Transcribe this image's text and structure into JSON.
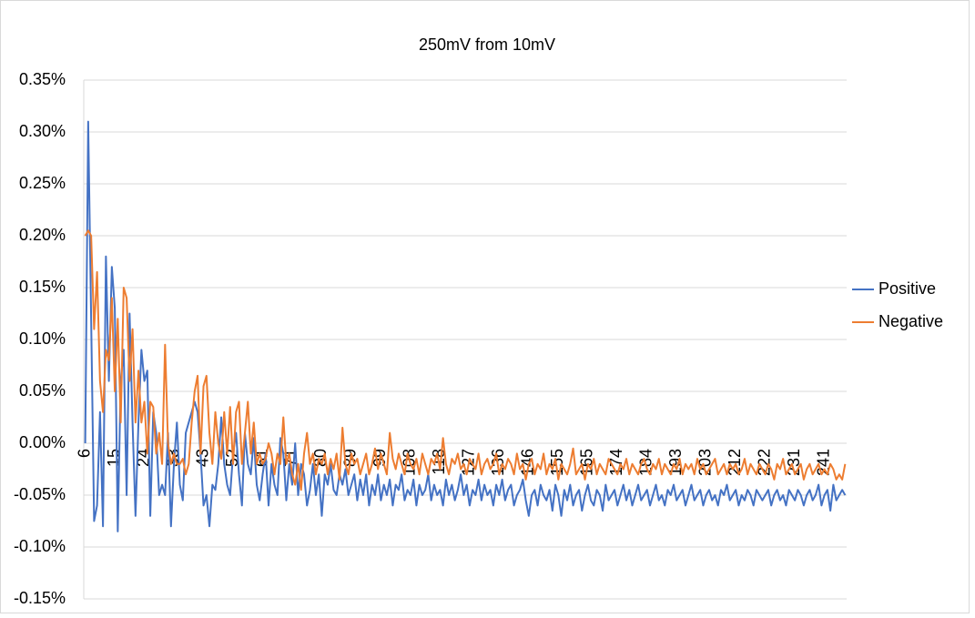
{
  "chart_data": {
    "type": "line",
    "title": "250mV from 10mV",
    "categories": [
      6,
      null,
      null,
      null,
      null,
      null,
      null,
      null,
      null,
      null,
      15,
      null,
      null,
      null,
      null,
      null,
      null,
      null,
      null,
      null,
      24,
      null,
      null,
      null,
      null,
      null,
      null,
      null,
      null,
      null,
      33,
      null,
      null,
      null,
      null,
      null,
      null,
      null,
      null,
      null,
      43,
      null,
      null,
      null,
      null,
      null,
      null,
      null,
      null,
      null,
      52,
      null,
      null,
      null,
      null,
      null,
      null,
      null,
      null,
      null,
      61,
      null,
      null,
      null,
      null,
      null,
      null,
      null,
      null,
      null,
      71,
      null,
      null,
      null,
      null,
      null,
      null,
      null,
      null,
      null,
      80,
      null,
      null,
      null,
      null,
      null,
      null,
      null,
      null,
      null,
      89,
      null,
      null,
      null,
      null,
      null,
      null,
      null,
      null,
      null,
      99,
      null,
      null,
      null,
      null,
      null,
      null,
      null,
      null,
      null,
      108,
      null,
      null,
      null,
      null,
      null,
      null,
      null,
      null,
      null,
      118,
      null,
      null,
      null,
      null,
      null,
      null,
      null,
      null,
      null,
      127,
      null,
      null,
      null,
      null,
      null,
      null,
      null,
      null,
      null,
      136,
      null,
      null,
      null,
      null,
      null,
      null,
      null,
      null,
      null,
      146,
      null,
      null,
      null,
      null,
      null,
      null,
      null,
      null,
      null,
      155,
      null,
      null,
      null,
      null,
      null,
      null,
      null,
      null,
      null,
      165,
      null,
      null,
      null,
      null,
      null,
      null,
      null,
      null,
      null,
      174,
      null,
      null,
      null,
      null,
      null,
      null,
      null,
      null,
      null,
      184,
      null,
      null,
      null,
      null,
      null,
      null,
      null,
      null,
      null,
      193,
      null,
      null,
      null,
      null,
      null,
      null,
      null,
      null,
      null,
      203,
      null,
      null,
      null,
      null,
      null,
      null,
      null,
      null,
      null,
      212,
      null,
      null,
      null,
      null,
      null,
      null,
      null,
      null,
      null,
      222,
      null,
      null,
      null,
      null,
      null,
      null,
      null,
      null,
      null,
      231,
      null,
      null,
      null,
      null,
      null,
      null,
      null,
      null,
      null,
      241,
      null,
      null,
      null,
      null,
      null,
      null,
      null
    ],
    "series": [
      {
        "name": "Positive",
        "color": "#4472c4",
        "values": [
          0,
          0.31,
          0.12,
          -0.075,
          -0.06,
          0.03,
          -0.08,
          0.18,
          0.06,
          0.17,
          0.13,
          -0.085,
          0.06,
          0.09,
          -0.05,
          0.125,
          0.02,
          -0.07,
          0.02,
          0.09,
          0.06,
          0.07,
          -0.07,
          0.03,
          0.01,
          -0.05,
          -0.04,
          -0.05,
          0.01,
          -0.08,
          -0.02,
          0.02,
          -0.04,
          -0.055,
          0.01,
          0.02,
          0.03,
          0.04,
          0.03,
          -0.01,
          -0.06,
          -0.05,
          -0.08,
          -0.04,
          -0.045,
          -0.02,
          0.025,
          -0.02,
          -0.04,
          -0.05,
          -0.01,
          0.01,
          -0.03,
          -0.06,
          0.01,
          -0.02,
          -0.03,
          0.005,
          -0.04,
          -0.055,
          -0.03,
          -0.01,
          -0.06,
          -0.02,
          -0.04,
          -0.05,
          0.005,
          -0.01,
          -0.055,
          -0.02,
          -0.04,
          0,
          -0.05,
          -0.02,
          -0.03,
          -0.06,
          -0.045,
          -0.02,
          -0.05,
          -0.03,
          -0.07,
          -0.03,
          -0.04,
          -0.02,
          -0.045,
          -0.05,
          -0.03,
          -0.04,
          -0.025,
          -0.05,
          -0.04,
          -0.03,
          -0.055,
          -0.035,
          -0.05,
          -0.03,
          -0.06,
          -0.04,
          -0.05,
          -0.03,
          -0.055,
          -0.04,
          -0.05,
          -0.035,
          -0.06,
          -0.04,
          -0.045,
          -0.03,
          -0.055,
          -0.045,
          -0.05,
          -0.035,
          -0.06,
          -0.04,
          -0.05,
          -0.045,
          -0.03,
          -0.055,
          -0.04,
          -0.05,
          -0.045,
          -0.06,
          -0.035,
          -0.05,
          -0.04,
          -0.055,
          -0.045,
          -0.03,
          -0.05,
          -0.04,
          -0.06,
          -0.045,
          -0.05,
          -0.035,
          -0.055,
          -0.04,
          -0.05,
          -0.045,
          -0.06,
          -0.04,
          -0.05,
          -0.035,
          -0.055,
          -0.045,
          -0.04,
          -0.06,
          -0.05,
          -0.045,
          -0.035,
          -0.055,
          -0.07,
          -0.05,
          -0.045,
          -0.06,
          -0.04,
          -0.05,
          -0.055,
          -0.045,
          -0.065,
          -0.04,
          -0.05,
          -0.07,
          -0.045,
          -0.055,
          -0.04,
          -0.06,
          -0.05,
          -0.045,
          -0.065,
          -0.05,
          -0.04,
          -0.055,
          -0.06,
          -0.045,
          -0.05,
          -0.065,
          -0.04,
          -0.055,
          -0.05,
          -0.045,
          -0.06,
          -0.05,
          -0.04,
          -0.055,
          -0.045,
          -0.06,
          -0.05,
          -0.04,
          -0.055,
          -0.05,
          -0.045,
          -0.06,
          -0.05,
          -0.04,
          -0.055,
          -0.05,
          -0.06,
          -0.045,
          -0.05,
          -0.04,
          -0.055,
          -0.05,
          -0.045,
          -0.06,
          -0.05,
          -0.04,
          -0.055,
          -0.05,
          -0.045,
          -0.06,
          -0.05,
          -0.045,
          -0.055,
          -0.05,
          -0.06,
          -0.045,
          -0.05,
          -0.04,
          -0.055,
          -0.05,
          -0.045,
          -0.06,
          -0.05,
          -0.055,
          -0.045,
          -0.05,
          -0.06,
          -0.045,
          -0.05,
          -0.055,
          -0.05,
          -0.045,
          -0.06,
          -0.05,
          -0.045,
          -0.055,
          -0.05,
          -0.06,
          -0.045,
          -0.05,
          -0.055,
          -0.045,
          -0.05,
          -0.06,
          -0.05,
          -0.045,
          -0.055,
          -0.05,
          -0.04,
          -0.06,
          -0.05,
          -0.045,
          -0.065,
          -0.04,
          -0.055,
          -0.05,
          -0.045,
          -0.05
        ]
      },
      {
        "name": "Negative",
        "color": "#ed7d31",
        "values": [
          0.2,
          0.205,
          0.2,
          0.11,
          0.165,
          0.06,
          0.03,
          0.09,
          0.08,
          0.14,
          0.05,
          0.12,
          0.02,
          0.15,
          0.14,
          0.06,
          0.11,
          0.02,
          0.07,
          0.02,
          0.04,
          -0.01,
          0.04,
          0.035,
          -0.01,
          0.01,
          -0.02,
          0.095,
          0,
          -0.02,
          -0.01,
          -0.02,
          -0.02,
          -0.015,
          -0.03,
          -0.02,
          0.02,
          0.05,
          0.065,
          -0.01,
          0.055,
          0.065,
          0.01,
          -0.02,
          0.03,
          0,
          -0.015,
          0.03,
          -0.01,
          0.035,
          -0.02,
          0.03,
          0.04,
          -0.02,
          0.01,
          0.04,
          -0.01,
          0.02,
          -0.02,
          -0.01,
          -0.02,
          -0.015,
          0,
          -0.01,
          -0.03,
          -0.01,
          -0.02,
          0.025,
          -0.02,
          -0.01,
          -0.03,
          -0.04,
          -0.02,
          -0.045,
          -0.01,
          0.01,
          -0.02,
          -0.01,
          -0.03,
          -0.015,
          -0.02,
          -0.01,
          -0.03,
          -0.015,
          -0.025,
          -0.01,
          -0.035,
          0.015,
          -0.02,
          -0.03,
          -0.01,
          -0.02,
          -0.015,
          -0.03,
          -0.02,
          -0.01,
          -0.03,
          -0.02,
          -0.005,
          -0.025,
          -0.01,
          -0.02,
          -0.03,
          0.01,
          -0.015,
          -0.025,
          -0.01,
          -0.02,
          -0.03,
          -0.01,
          -0.02,
          -0.025,
          -0.015,
          -0.03,
          -0.01,
          -0.02,
          -0.03,
          -0.015,
          -0.02,
          -0.01,
          -0.025,
          0.005,
          -0.02,
          -0.03,
          -0.015,
          -0.02,
          -0.01,
          -0.025,
          -0.02,
          -0.03,
          -0.015,
          -0.02,
          -0.025,
          -0.01,
          -0.03,
          -0.02,
          -0.015,
          -0.025,
          -0.02,
          -0.01,
          -0.03,
          -0.02,
          -0.025,
          -0.015,
          -0.02,
          -0.03,
          -0.01,
          -0.025,
          -0.02,
          -0.035,
          -0.02,
          -0.015,
          -0.03,
          -0.02,
          -0.025,
          -0.01,
          -0.03,
          -0.02,
          -0.025,
          -0.015,
          -0.035,
          -0.02,
          -0.025,
          -0.03,
          -0.02,
          -0.005,
          -0.03,
          -0.025,
          -0.02,
          -0.035,
          -0.02,
          -0.025,
          -0.015,
          -0.03,
          -0.02,
          -0.025,
          -0.03,
          -0.015,
          -0.02,
          -0.025,
          -0.03,
          -0.02,
          -0.025,
          -0.015,
          -0.03,
          -0.02,
          -0.025,
          -0.03,
          -0.02,
          -0.015,
          -0.025,
          -0.03,
          -0.02,
          -0.025,
          -0.015,
          -0.03,
          -0.02,
          -0.025,
          -0.03,
          -0.02,
          -0.025,
          -0.015,
          -0.03,
          -0.02,
          -0.025,
          -0.02,
          -0.03,
          -0.015,
          -0.025,
          -0.02,
          -0.03,
          -0.025,
          -0.02,
          -0.015,
          -0.03,
          -0.025,
          -0.02,
          -0.03,
          -0.02,
          -0.025,
          -0.02,
          -0.03,
          -0.025,
          -0.015,
          -0.03,
          -0.02,
          -0.025,
          -0.03,
          -0.02,
          -0.025,
          -0.03,
          -0.02,
          -0.025,
          -0.035,
          -0.02,
          -0.025,
          -0.015,
          -0.03,
          -0.025,
          -0.02,
          -0.03,
          -0.025,
          -0.02,
          -0.035,
          -0.025,
          -0.02,
          -0.03,
          -0.025,
          -0.02,
          -0.03,
          -0.025,
          -0.03,
          -0.02,
          -0.025,
          -0.035,
          -0.03,
          -0.035,
          -0.02
        ]
      }
    ],
    "ylim": [
      -0.15,
      0.35
    ],
    "yticks": [
      {
        "value": -0.15,
        "label": "-0.15%"
      },
      {
        "value": -0.1,
        "label": "-0.10%"
      },
      {
        "value": -0.05,
        "label": "-0.05%"
      },
      {
        "value": 0,
        "label": "0.00%"
      },
      {
        "value": 0.05,
        "label": "0.05%"
      },
      {
        "value": 0.1,
        "label": "0.10%"
      },
      {
        "value": 0.15,
        "label": "0.15%"
      },
      {
        "value": 0.2,
        "label": "0.20%"
      },
      {
        "value": 0.25,
        "label": "0.25%"
      },
      {
        "value": 0.3,
        "label": "0.30%"
      },
      {
        "value": 0.35,
        "label": "0.35%"
      }
    ],
    "grid": true,
    "legend": "right"
  }
}
